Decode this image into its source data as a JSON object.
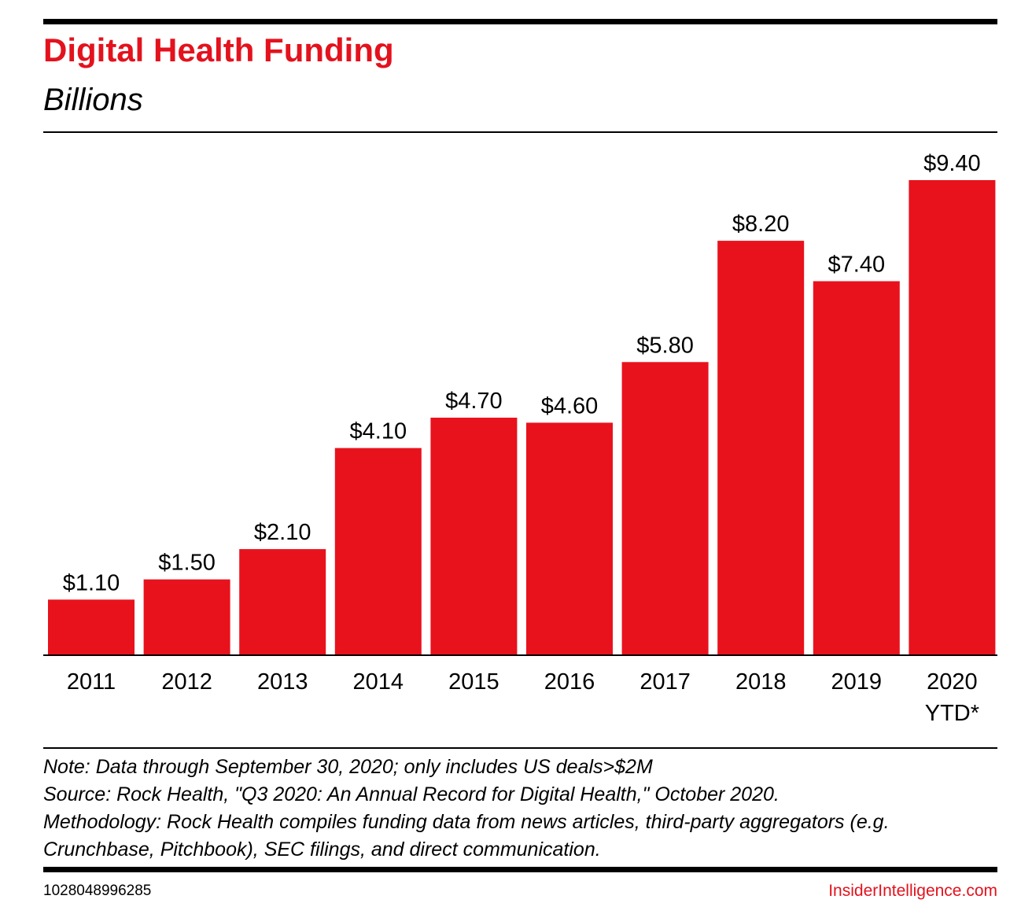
{
  "header": {
    "title": "Digital Health Funding",
    "subtitle": "Billions"
  },
  "chart_data": {
    "type": "bar",
    "title": "Digital Health Funding",
    "subtitle": "Billions",
    "categories": [
      "2011",
      "2012",
      "2013",
      "2014",
      "2015",
      "2016",
      "2017",
      "2018",
      "2019",
      "2020"
    ],
    "category_sublabels": [
      "",
      "",
      "",
      "",
      "",
      "",
      "",
      "",
      "",
      "YTD*"
    ],
    "values": [
      1.1,
      1.5,
      2.1,
      4.1,
      4.7,
      4.6,
      5.8,
      8.2,
      7.4,
      9.4
    ],
    "value_labels": [
      "$1.10",
      "$1.50",
      "$2.10",
      "$4.10",
      "$4.70",
      "$4.60",
      "$5.80",
      "$8.20",
      "$7.40",
      "$9.40"
    ],
    "xlabel": "",
    "ylabel": "Billions",
    "ylim": [
      0,
      9.4
    ],
    "grid": false,
    "bar_color": "#e8121d"
  },
  "footer": {
    "notes": [
      "Note: Data through September 30, 2020; only includes US deals>$2M",
      "Source: Rock Health, \"Q3 2020: An Annual Record for Digital Health,\" October 2020.",
      "Methodology: Rock Health compiles funding data from news articles, third-party aggregators (e.g.",
      "Crunchbase, Pitchbook), SEC filings, and direct communication."
    ],
    "chart_id": "1028048996285",
    "brand": "InsiderIntelligence.com"
  },
  "colors": {
    "accent": "#e3121d",
    "text": "#000000"
  }
}
